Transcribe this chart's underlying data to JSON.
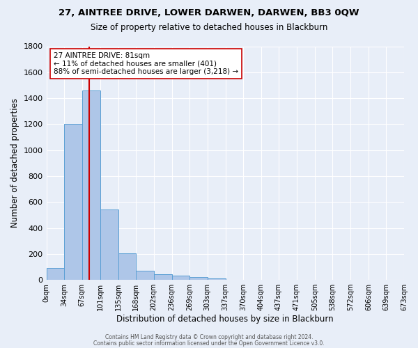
{
  "title": "27, AINTREE DRIVE, LOWER DARWEN, DARWEN, BB3 0QW",
  "subtitle": "Size of property relative to detached houses in Blackburn",
  "xlabel": "Distribution of detached houses by size in Blackburn",
  "ylabel": "Number of detached properties",
  "bar_values": [
    90,
    1200,
    1460,
    540,
    205,
    70,
    45,
    30,
    22,
    12,
    0,
    0,
    0,
    0,
    0,
    0,
    0,
    0,
    0,
    0
  ],
  "bar_color": "#aec6e8",
  "bar_edge_color": "#5a9fd4",
  "red_line_x": 81,
  "red_line_color": "#cc0000",
  "annotation_title": "27 AINTREE DRIVE: 81sqm",
  "annotation_line1": "← 11% of detached houses are smaller (401)",
  "annotation_line2": "88% of semi-detached houses are larger (3,218) →",
  "annotation_box_color": "#ffffff",
  "annotation_box_edge": "#cc0000",
  "ylim_max": 1800,
  "yticks": [
    0,
    200,
    400,
    600,
    800,
    1000,
    1200,
    1400,
    1600,
    1800
  ],
  "bin_edges": [
    0,
    34,
    67,
    101,
    135,
    168,
    202,
    236,
    269,
    303,
    337,
    370,
    404,
    437,
    471,
    505,
    538,
    572,
    606,
    639,
    673
  ],
  "background_color": "#e8eef8",
  "grid_color": "#ffffff",
  "footer_line1": "Contains HM Land Registry data © Crown copyright and database right 2024.",
  "footer_line2": "Contains public sector information licensed under the Open Government Licence v3.0."
}
